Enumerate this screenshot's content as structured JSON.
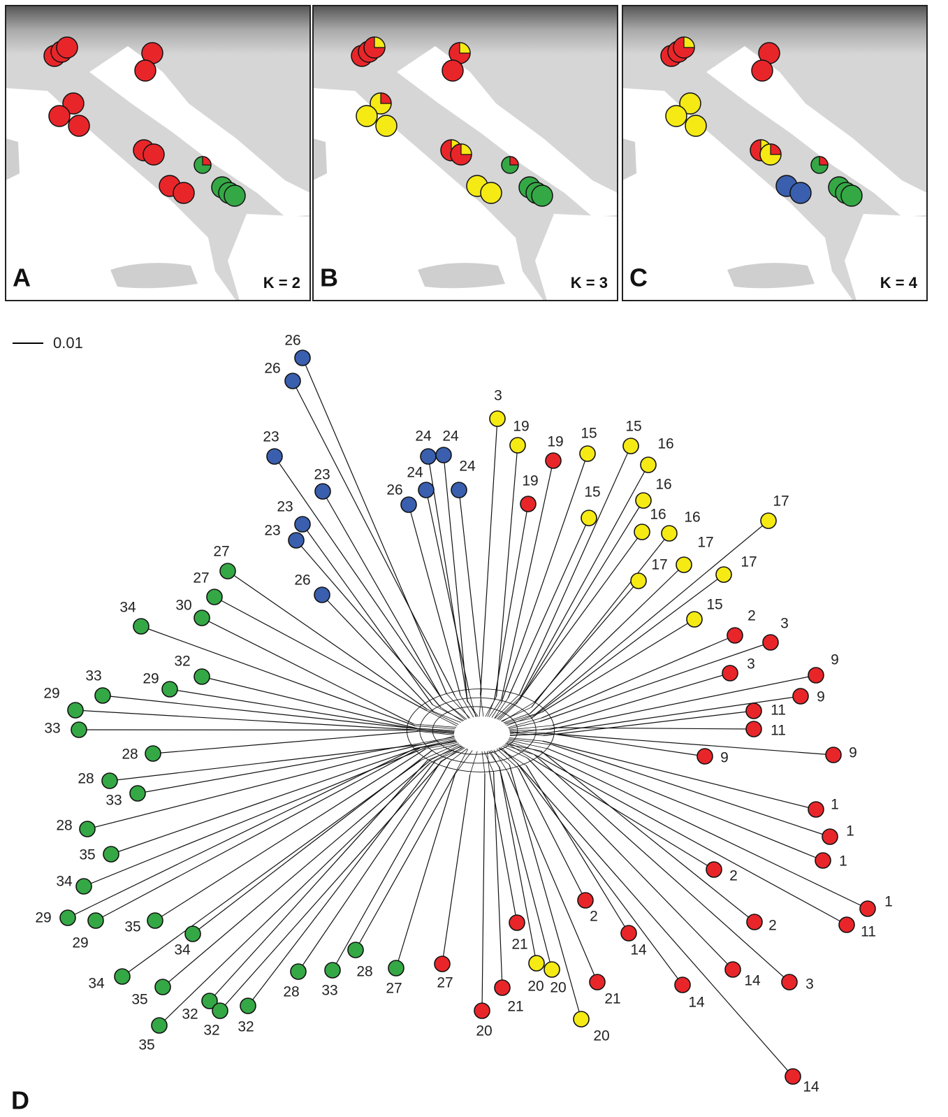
{
  "maps": [
    {
      "letter": "A",
      "k_label": "K = 2"
    },
    {
      "letter": "B",
      "k_label": "K = 3"
    },
    {
      "letter": "C",
      "k_label": "K = 4"
    }
  ],
  "network": {
    "panel_letter": "D",
    "scale_label": "0.01",
    "nodes": [
      {
        "label": "26",
        "color": "#3a5fae"
      },
      {
        "label": "26",
        "color": "#3a5fae"
      },
      {
        "label": "23",
        "color": "#3a5fae"
      },
      {
        "label": "23",
        "color": "#3a5fae"
      },
      {
        "label": "23",
        "color": "#3a5fae"
      },
      {
        "label": "23",
        "color": "#3a5fae"
      },
      {
        "label": "26",
        "color": "#3a5fae"
      },
      {
        "label": "24",
        "color": "#3a5fae"
      },
      {
        "label": "24",
        "color": "#3a5fae"
      },
      {
        "label": "24",
        "color": "#3a5fae"
      },
      {
        "label": "24",
        "color": "#3a5fae"
      },
      {
        "label": "26",
        "color": "#3a5fae"
      },
      {
        "label": "3",
        "color": "#f5ea14"
      },
      {
        "label": "19",
        "color": "#f5ea14"
      },
      {
        "label": "19",
        "color": "#e8262a"
      },
      {
        "label": "19",
        "color": "#e8262a"
      },
      {
        "label": "15",
        "color": "#f5ea14"
      },
      {
        "label": "15",
        "color": "#f5ea14"
      },
      {
        "label": "16",
        "color": "#f5ea14"
      },
      {
        "label": "16",
        "color": "#f5ea14"
      },
      {
        "label": "15",
        "color": "#f5ea14"
      },
      {
        "label": "16",
        "color": "#f5ea14"
      },
      {
        "label": "16",
        "color": "#f5ea14"
      },
      {
        "label": "17",
        "color": "#f5ea14"
      },
      {
        "label": "17",
        "color": "#f5ea14"
      },
      {
        "label": "17",
        "color": "#f5ea14"
      },
      {
        "label": "17",
        "color": "#f5ea14"
      },
      {
        "label": "15",
        "color": "#f5ea14"
      },
      {
        "label": "2",
        "color": "#e8262a"
      },
      {
        "label": "3",
        "color": "#e8262a"
      },
      {
        "label": "3",
        "color": "#e8262a"
      },
      {
        "label": "9",
        "color": "#e8262a"
      },
      {
        "label": "9",
        "color": "#e8262a"
      },
      {
        "label": "11",
        "color": "#e8262a"
      },
      {
        "label": "11",
        "color": "#e8262a"
      },
      {
        "label": "9",
        "color": "#e8262a"
      },
      {
        "label": "9",
        "color": "#e8262a"
      },
      {
        "label": "1",
        "color": "#e8262a"
      },
      {
        "label": "1",
        "color": "#e8262a"
      },
      {
        "label": "1",
        "color": "#e8262a"
      },
      {
        "label": "1",
        "color": "#e8262a"
      },
      {
        "label": "11",
        "color": "#e8262a"
      },
      {
        "label": "2",
        "color": "#e8262a"
      },
      {
        "label": "2",
        "color": "#e8262a"
      },
      {
        "label": "3",
        "color": "#e8262a"
      },
      {
        "label": "14",
        "color": "#e8262a"
      },
      {
        "label": "14",
        "color": "#e8262a"
      },
      {
        "label": "14",
        "color": "#e8262a"
      },
      {
        "label": "2",
        "color": "#e8262a"
      },
      {
        "label": "21",
        "color": "#e8262a"
      },
      {
        "label": "14",
        "color": "#e8262a"
      },
      {
        "label": "20",
        "color": "#f5ea14"
      },
      {
        "label": "20",
        "color": "#f5ea14"
      },
      {
        "label": "20",
        "color": "#f5ea14"
      },
      {
        "label": "21",
        "color": "#e8262a"
      },
      {
        "label": "21",
        "color": "#e8262a"
      },
      {
        "label": "20",
        "color": "#e8262a"
      },
      {
        "label": "27",
        "color": "#e8262a"
      },
      {
        "label": "27",
        "color": "#35a846"
      },
      {
        "label": "28",
        "color": "#35a846"
      },
      {
        "label": "33",
        "color": "#35a846"
      },
      {
        "label": "28",
        "color": "#35a846"
      },
      {
        "label": "32",
        "color": "#35a846"
      },
      {
        "label": "32",
        "color": "#35a846"
      },
      {
        "label": "32",
        "color": "#35a846"
      },
      {
        "label": "35",
        "color": "#35a846"
      },
      {
        "label": "35",
        "color": "#35a846"
      },
      {
        "label": "34",
        "color": "#35a846"
      },
      {
        "label": "34",
        "color": "#35a846"
      },
      {
        "label": "35",
        "color": "#35a846"
      },
      {
        "label": "29",
        "color": "#35a846"
      },
      {
        "label": "29",
        "color": "#35a846"
      },
      {
        "label": "34",
        "color": "#35a846"
      },
      {
        "label": "35",
        "color": "#35a846"
      },
      {
        "label": "28",
        "color": "#35a846"
      },
      {
        "label": "33",
        "color": "#35a846"
      },
      {
        "label": "28",
        "color": "#35a846"
      },
      {
        "label": "28",
        "color": "#35a846"
      },
      {
        "label": "33",
        "color": "#35a846"
      },
      {
        "label": "29",
        "color": "#35a846"
      },
      {
        "label": "33",
        "color": "#35a846"
      },
      {
        "label": "29",
        "color": "#35a846"
      },
      {
        "label": "32",
        "color": "#35a846"
      },
      {
        "label": "34",
        "color": "#35a846"
      },
      {
        "label": "30",
        "color": "#35a846"
      },
      {
        "label": "27",
        "color": "#35a846"
      },
      {
        "label": "27",
        "color": "#35a846"
      }
    ]
  }
}
